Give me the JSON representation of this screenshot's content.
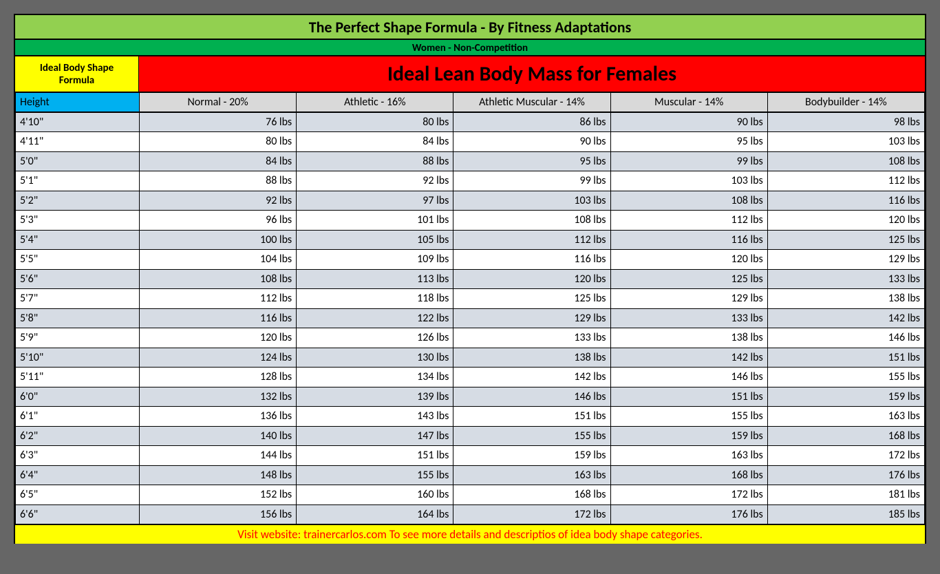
{
  "type": "table",
  "colors": {
    "page_bg": "#666666",
    "title_bg": "#92d050",
    "subtitle_bg": "#00b050",
    "formula_bg": "#ffff00",
    "main_title_bg": "#ff0000",
    "height_head_bg": "#00b0f0",
    "col_head_bg": "#d9d9d9",
    "row_odd_bg": "#d6dce4",
    "row_even_bg": "#ffffff",
    "footer_bg": "#ffff00",
    "footer_text": "#ff0000",
    "border": "#000000"
  },
  "title": "The Perfect Shape Formula - By Fitness Adaptations",
  "subtitle": "Women - Non-Competition",
  "formula_label_line1": "Ideal Body Shape",
  "formula_label_line2": "Formula",
  "main_title": "Ideal Lean Body Mass for Females",
  "height_header": "Height",
  "columns": [
    "Normal - 20%",
    "Athletic - 16%",
    "Athletic Muscular - 14%",
    "Muscular  - 14%",
    "Bodybuilder - 14%"
  ],
  "rows": [
    {
      "h": "4'10\"",
      "v": [
        "76 lbs",
        "80 lbs",
        "86 lbs",
        "90 lbs",
        "98 lbs"
      ]
    },
    {
      "h": "4'11\"",
      "v": [
        "80 lbs",
        "84 lbs",
        "90 lbs",
        "95 lbs",
        "103 lbs"
      ]
    },
    {
      "h": "5'0\"",
      "v": [
        "84 lbs",
        "88 lbs",
        "95 lbs",
        "99 lbs",
        "108 lbs"
      ]
    },
    {
      "h": "5'1\"",
      "v": [
        "88 lbs",
        "92 lbs",
        "99 lbs",
        "103 lbs",
        "112 lbs"
      ]
    },
    {
      "h": "5'2\"",
      "v": [
        "92 lbs",
        "97 lbs",
        "103 lbs",
        "108 lbs",
        "116 lbs"
      ]
    },
    {
      "h": "5'3\"",
      "v": [
        "96 lbs",
        "101 lbs",
        "108 lbs",
        "112 lbs",
        "120 lbs"
      ]
    },
    {
      "h": "5'4\"",
      "v": [
        "100 lbs",
        "105 lbs",
        "112 lbs",
        "116 lbs",
        "125 lbs"
      ]
    },
    {
      "h": "5'5\"",
      "v": [
        "104 lbs",
        "109 lbs",
        "116 lbs",
        "120 lbs",
        "129 lbs"
      ]
    },
    {
      "h": "5'6\"",
      "v": [
        "108 lbs",
        "113 lbs",
        "120 lbs",
        "125 lbs",
        "133 lbs"
      ]
    },
    {
      "h": "5'7\"",
      "v": [
        "112 lbs",
        "118 lbs",
        "125 lbs",
        "129 lbs",
        "138 lbs"
      ]
    },
    {
      "h": "5'8\"",
      "v": [
        "116 lbs",
        "122 lbs",
        "129 lbs",
        "133 lbs",
        "142 lbs"
      ]
    },
    {
      "h": "5'9\"",
      "v": [
        "120 lbs",
        "126 lbs",
        "133 lbs",
        "138 lbs",
        "146 lbs"
      ]
    },
    {
      "h": "5'10\"",
      "v": [
        "124 lbs",
        "130 lbs",
        "138 lbs",
        "142 lbs",
        "151 lbs"
      ]
    },
    {
      "h": "5'11\"",
      "v": [
        "128 lbs",
        "134 lbs",
        "142 lbs",
        "146 lbs",
        "155 lbs"
      ]
    },
    {
      "h": "6'0\"",
      "v": [
        "132 lbs",
        "139 lbs",
        "146 lbs",
        "151 lbs",
        "159 lbs"
      ]
    },
    {
      "h": "6'1\"",
      "v": [
        "136 lbs",
        "143 lbs",
        "151 lbs",
        "155 lbs",
        "163 lbs"
      ]
    },
    {
      "h": "6'2\"",
      "v": [
        "140 lbs",
        "147 lbs",
        "155 lbs",
        "159 lbs",
        "168 lbs"
      ]
    },
    {
      "h": "6'3\"",
      "v": [
        "144 lbs",
        "151 lbs",
        "159 lbs",
        "163 lbs",
        "172 lbs"
      ]
    },
    {
      "h": "6'4\"",
      "v": [
        "148 lbs",
        "155 lbs",
        "163 lbs",
        "168 lbs",
        "176 lbs"
      ]
    },
    {
      "h": "6'5\"",
      "v": [
        "152 lbs",
        "160 lbs",
        "168 lbs",
        "172 lbs",
        "181 lbs"
      ]
    },
    {
      "h": "6'6\"",
      "v": [
        "156 lbs",
        "164 lbs",
        "172 lbs",
        "176 lbs",
        "185 lbs"
      ]
    }
  ],
  "footer": "Visit website: trainercarlos.com To see more details and descriptios of idea body shape categories."
}
